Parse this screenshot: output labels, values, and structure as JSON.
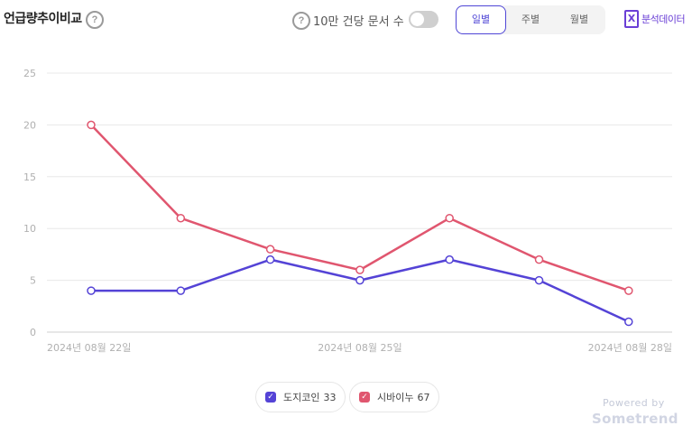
{
  "header": {
    "title": "언급량추이비교",
    "per_doc_label": "10만 건당 문서 수",
    "help_glyph": "?",
    "period_tabs": [
      "일별",
      "주별",
      "월별"
    ],
    "active_tab": "일별",
    "excel_glyph": "X",
    "excel_label": "분석데이터"
  },
  "chart_data": {
    "type": "line",
    "x": [
      "2024-08-22",
      "2024-08-23",
      "2024-08-24",
      "2024-08-25",
      "2024-08-26",
      "2024-08-27",
      "2024-08-28"
    ],
    "x_tick_labels": [
      "2024년 08월 22일",
      "2024년 08월 25일",
      "2024년 08월 28일"
    ],
    "y_ticks": [
      0,
      5,
      10,
      15,
      20,
      25
    ],
    "ylim": [
      0,
      25
    ],
    "grid": true,
    "series": [
      {
        "name": "도지코인",
        "values": [
          4,
          4,
          7,
          5,
          7,
          5,
          1
        ],
        "color": "#5443d6"
      },
      {
        "name": "시바이누",
        "values": [
          20,
          11,
          8,
          6,
          11,
          7,
          4
        ],
        "color": "#e0566f"
      }
    ]
  },
  "legend": [
    {
      "name": "도지코인",
      "count": "33",
      "color": "#5443d6"
    },
    {
      "name": "시바이누",
      "count": "67",
      "color": "#e0566f"
    }
  ],
  "footer": {
    "powered": "Powered by",
    "brand": "Sometrend"
  }
}
